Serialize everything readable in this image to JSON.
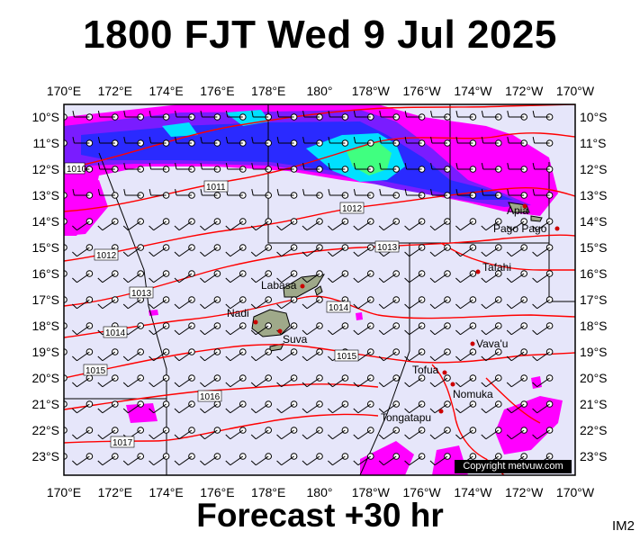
{
  "title": "1800 FJT Wed 9 Jul 2025",
  "forecast": "Forecast +30 hr",
  "image_code": "IM2",
  "copyright": "Copyright metvuw.com",
  "lon_labels": [
    "170°E",
    "172°E",
    "174°E",
    "176°E",
    "178°E",
    "180°",
    "178°W",
    "176°W",
    "174°W",
    "172°W",
    "170°W"
  ],
  "lat_labels": [
    "10°S",
    "11°S",
    "12°S",
    "13°S",
    "14°S",
    "15°S",
    "16°S",
    "17°S",
    "18°S",
    "19°S",
    "20°S",
    "21°S",
    "22°S",
    "23°S"
  ],
  "places": [
    {
      "name": "Apia"
    },
    {
      "name": "Pago Pago"
    },
    {
      "name": "Tafahi"
    },
    {
      "name": "Labasa"
    },
    {
      "name": "Nadi"
    },
    {
      "name": "Suva"
    },
    {
      "name": "Vava'u"
    },
    {
      "name": "Tofua"
    },
    {
      "name": "Nomuka"
    },
    {
      "name": "Tongatapu"
    }
  ],
  "isobars": [
    "1010",
    "1011",
    "1012",
    "1012",
    "1013",
    "1013",
    "1014",
    "1014",
    "1015",
    "1015",
    "1016",
    "1017"
  ],
  "colors": {
    "background": "#e6e6fa",
    "isobar": "#ff0000",
    "rain_light": "#ff00ff",
    "rain_moderate": "#6a00ff",
    "rain_heavy": "#1a1aff",
    "rain_very_heavy": "#00e0ff",
    "rain_extreme": "#40ff80"
  }
}
